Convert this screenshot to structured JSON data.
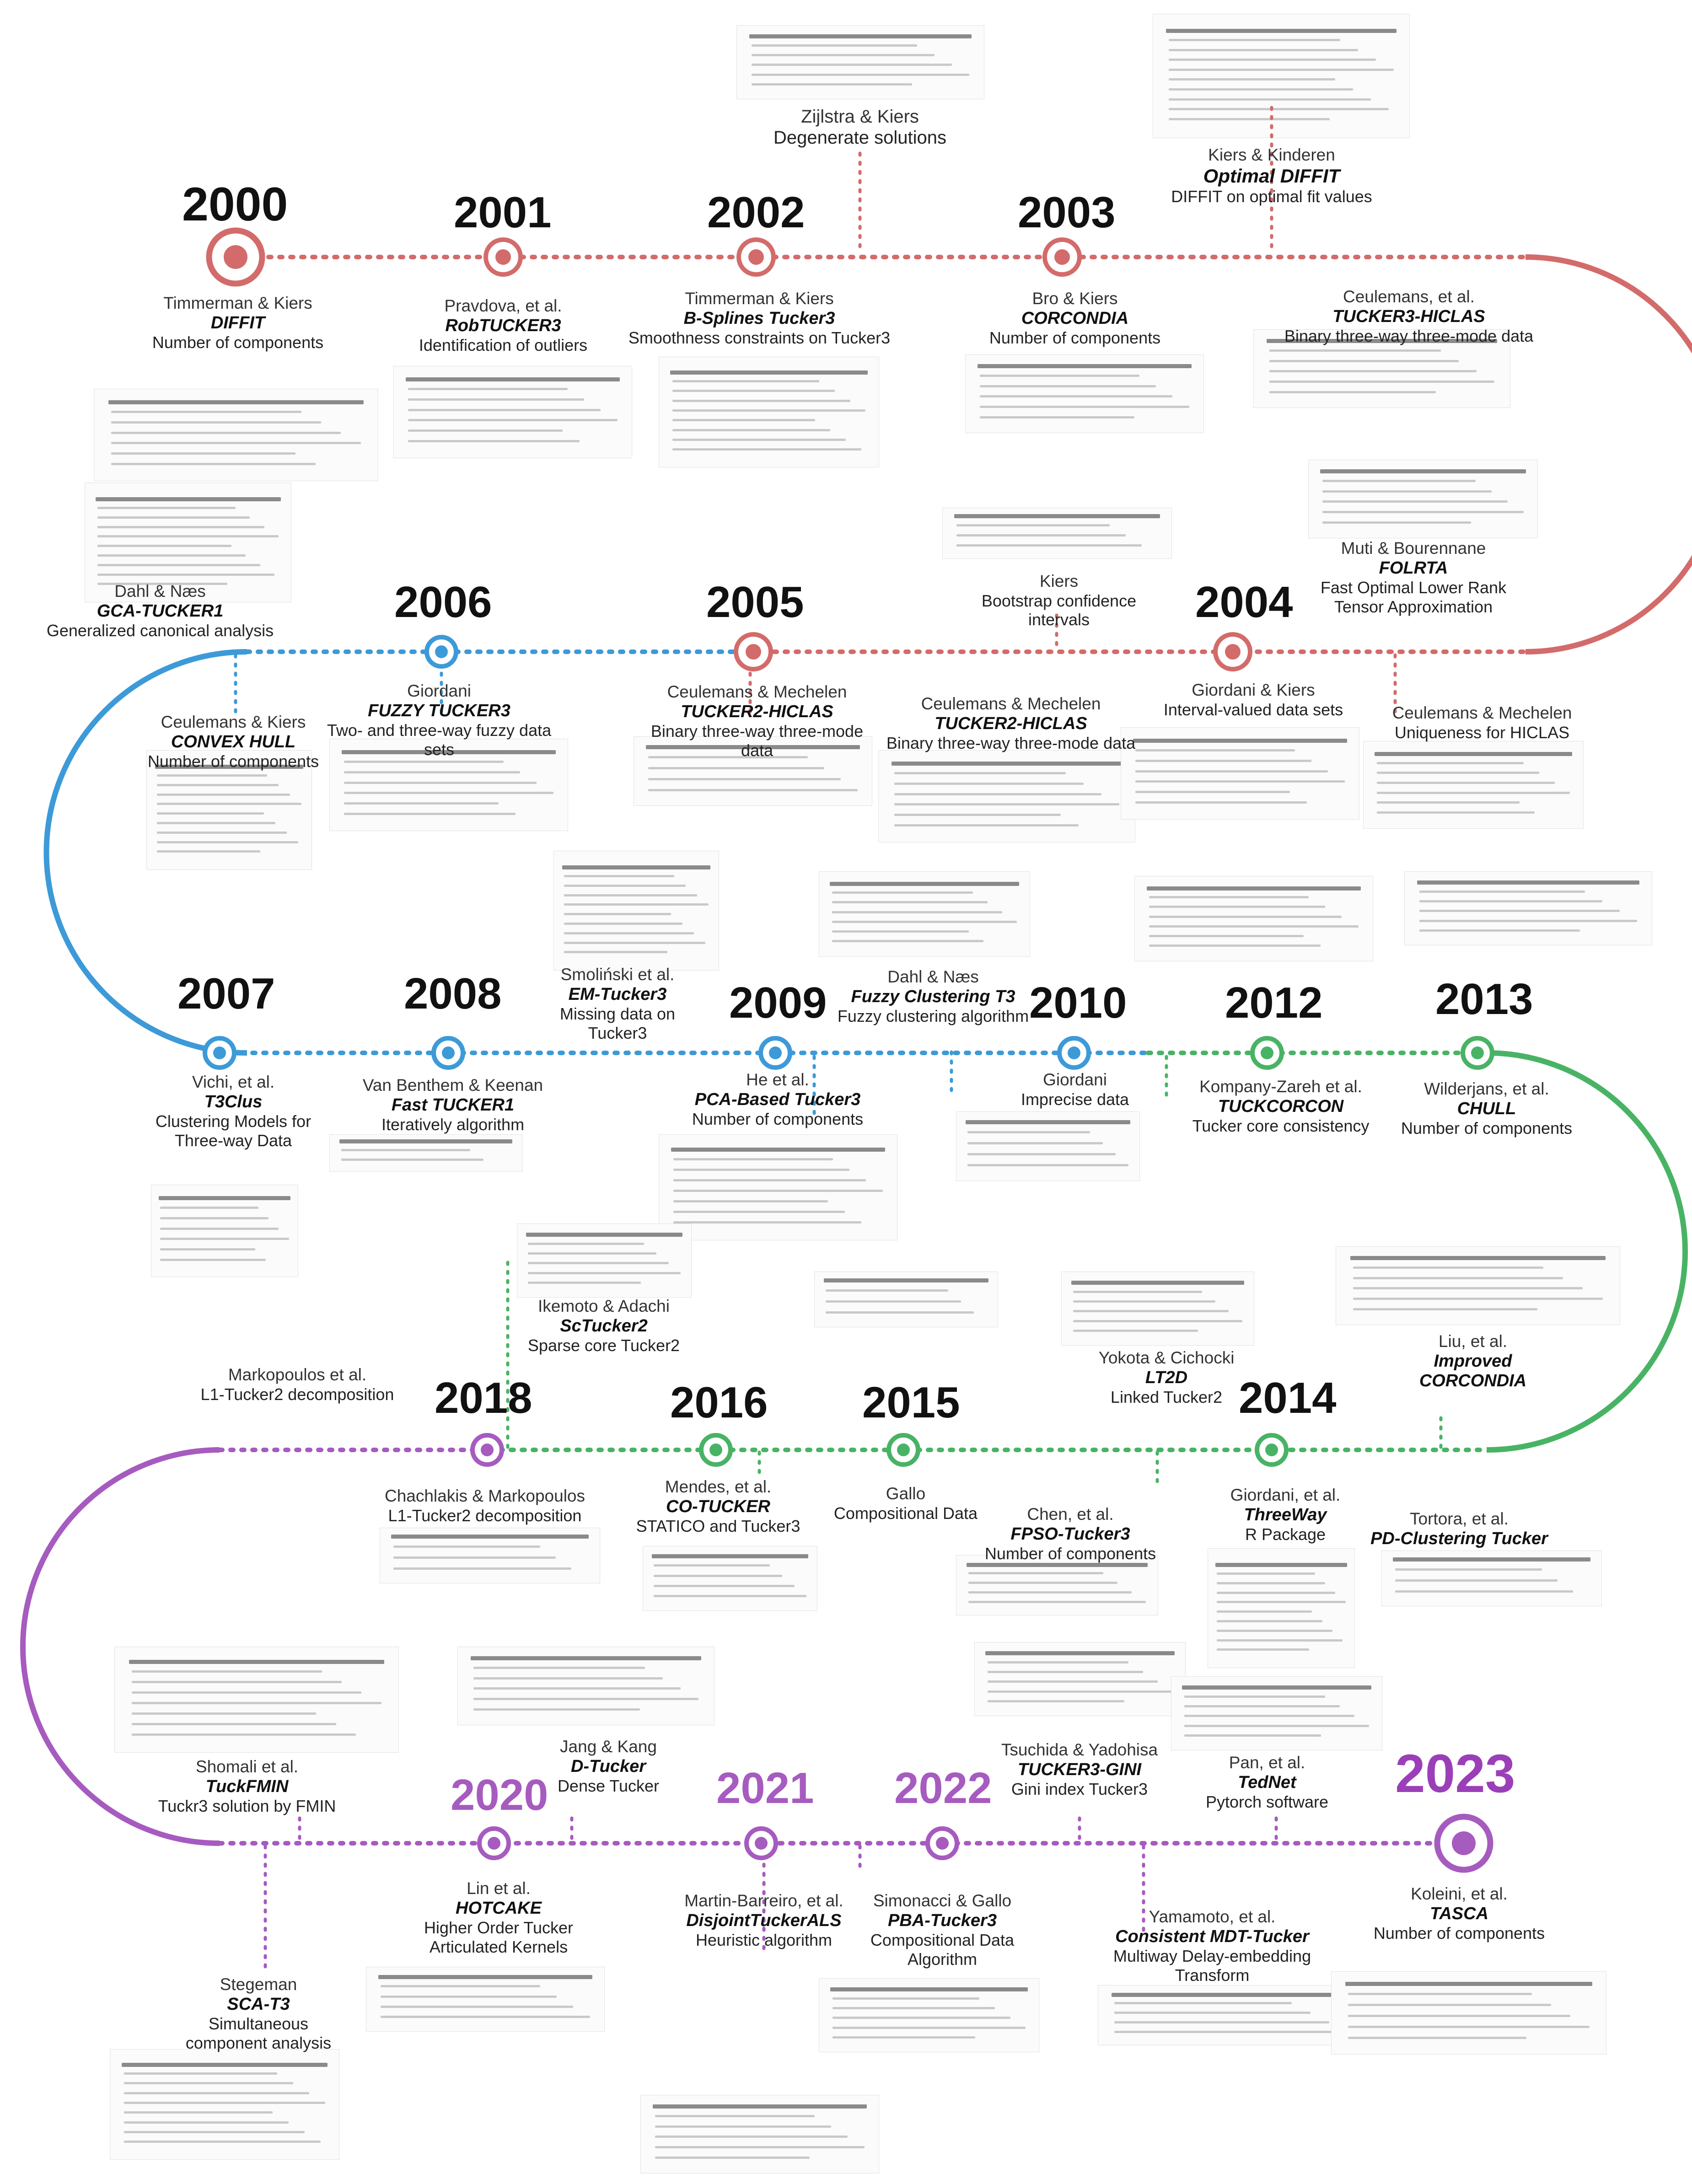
{
  "colors": {
    "red": "#d36b6b",
    "blue": "#3d9ad8",
    "green": "#49b365",
    "purple": "#a65bbf",
    "year_2023": "#9b3fb8"
  },
  "years": [
    "2000",
    "2001",
    "2002",
    "2003",
    "2004",
    "2005",
    "2006",
    "2007",
    "2008",
    "2009",
    "2010",
    "2012",
    "2013",
    "2014",
    "2015",
    "2016",
    "2018",
    "2020",
    "2021",
    "2022",
    "2023"
  ],
  "entries": [
    {
      "authors": "Timmerman & Kiers",
      "title": "DIFFIT",
      "desc": "Number of components"
    },
    {
      "authors": "Pravdova, et al.",
      "title": "RobTUCKER3",
      "desc": "Identification of outliers"
    },
    {
      "authors": "Zijlstra & Kiers",
      "title": "",
      "desc": "Degenerate solutions"
    },
    {
      "authors": "Timmerman & Kiers",
      "title": "B-Splines Tucker3",
      "desc": "Smoothness constraints on Tucker3"
    },
    {
      "authors": "Bro & Kiers",
      "title": "CORCONDIA",
      "desc": "Number of components"
    },
    {
      "authors": "Kiers & Kinderen",
      "title": "Optimal DIFFIT",
      "desc": "DIFFIT on optimal fit values"
    },
    {
      "authors": "Ceulemans, et al.",
      "title": "TUCKER3-HICLAS",
      "desc": "Binary three-way three-mode data"
    },
    {
      "authors": "Dahl & Næs",
      "title": "GCA-TUCKER1",
      "desc": "Generalized canonical analysis"
    },
    {
      "authors": "Kiers",
      "title": "",
      "desc": "Bootstrap confidence intervals"
    },
    {
      "authors": "Muti & Bourennane",
      "title": "FOLRTA",
      "desc": "Fast Optimal Lower Rank Tensor Approximation"
    },
    {
      "authors": "Ceulemans & Kiers",
      "title": "CONVEX HULL",
      "desc": "Number of components"
    },
    {
      "authors": "Giordani",
      "title": "FUZZY TUCKER3",
      "desc": "Two- and three-way fuzzy data sets"
    },
    {
      "authors": "Ceulemans & Mechelen",
      "title": "TUCKER2-HICLAS",
      "desc": "Binary three-way three-mode data"
    },
    {
      "authors": "Ceulemans & Mechelen",
      "title": "TUCKER2-HICLAS",
      "desc": "Binary three-way three-mode data"
    },
    {
      "authors": "Giordani & Kiers",
      "title": "",
      "desc": "Interval-valued data sets"
    },
    {
      "authors": "Ceulemans & Mechelen",
      "title": "",
      "desc": "Uniqueness for HICLAS"
    },
    {
      "authors": "Smoliński et al.",
      "title": "EM-Tucker3",
      "desc": "Missing data on Tucker3"
    },
    {
      "authors": "Dahl & Næs",
      "title": "Fuzzy Clustering T3",
      "desc": "Fuzzy clustering algorithm"
    },
    {
      "authors": "Vichi, et al.",
      "title": "T3Clus",
      "desc": "Clustering Models for Three-way Data"
    },
    {
      "authors": "Van Benthem & Keenan",
      "title": "Fast TUCKER1",
      "desc": "Iteratively algorithm"
    },
    {
      "authors": "He et al.",
      "title": "PCA-Based Tucker3",
      "desc": "Number of components"
    },
    {
      "authors": "Giordani",
      "title": "",
      "desc": "Imprecise data"
    },
    {
      "authors": "Kompany-Zareh et al.",
      "title": "TUCKCORCON",
      "desc": "Tucker core consistency"
    },
    {
      "authors": "Wilderjans, et al.",
      "title": "CHULL",
      "desc": "Number of components"
    },
    {
      "authors": "Ikemoto & Adachi",
      "title": "ScTucker2",
      "desc": "Sparse core Tucker2"
    },
    {
      "authors": "Markopoulos et al.",
      "title": "",
      "desc": "L1-Tucker2 decomposition"
    },
    {
      "authors": "Yokota & Cichocki",
      "title": "LT2D",
      "desc": "Linked Tucker2"
    },
    {
      "authors": "Liu, et al.",
      "title": "Improved CORCONDIA",
      "desc": ""
    },
    {
      "authors": "Chachlakis & Markopoulos",
      "title": "",
      "desc": "L1-Tucker2 decomposition"
    },
    {
      "authors": "Mendes, et al.",
      "title": "CO-TUCKER",
      "desc": "STATICO and Tucker3"
    },
    {
      "authors": "Gallo",
      "title": "",
      "desc": "Compositional Data"
    },
    {
      "authors": "Chen, et al.",
      "title": "FPSO-Tucker3",
      "desc": "Number of components"
    },
    {
      "authors": "Giordani, et al.",
      "title": "ThreeWay",
      "desc": "R Package"
    },
    {
      "authors": "Tortora, et al.",
      "title": "PD-Clustering Tucker",
      "desc": ""
    },
    {
      "authors": "Shomali et al.",
      "title": "TuckFMIN",
      "desc": "Tuckr3 solution by FMIN"
    },
    {
      "authors": "Jang & Kang",
      "title": "D-Tucker",
      "desc": "Dense Tucker"
    },
    {
      "authors": "Tsuchida & Yadohisa",
      "title": "TUCKER3-GINI",
      "desc": "Gini index Tucker3"
    },
    {
      "authors": "Pan, et al.",
      "title": "TedNet",
      "desc": "Pytorch software"
    },
    {
      "authors": "Stegeman",
      "title": "SCA-T3",
      "desc": "Simultaneous component analysis"
    },
    {
      "authors": "Lin et al.",
      "title": "HOTCAKE",
      "desc": "Higher Order Tucker Articulated Kernels"
    },
    {
      "authors": "Martin-Barreiro, et al.",
      "title": "DisjointTuckerALS",
      "desc": "Heuristic algorithm"
    },
    {
      "authors": "Simonacci & Gallo",
      "title": "PBA-Tucker3",
      "desc": "Compositional Data Algorithm"
    },
    {
      "authors": "Yamamoto, et al.",
      "title": "Consistent MDT-Tucker",
      "desc": "Multiway Delay-embedding Transform"
    },
    {
      "authors": "Koleini, et al.",
      "title": "TASCA",
      "desc": "Number of components"
    }
  ]
}
